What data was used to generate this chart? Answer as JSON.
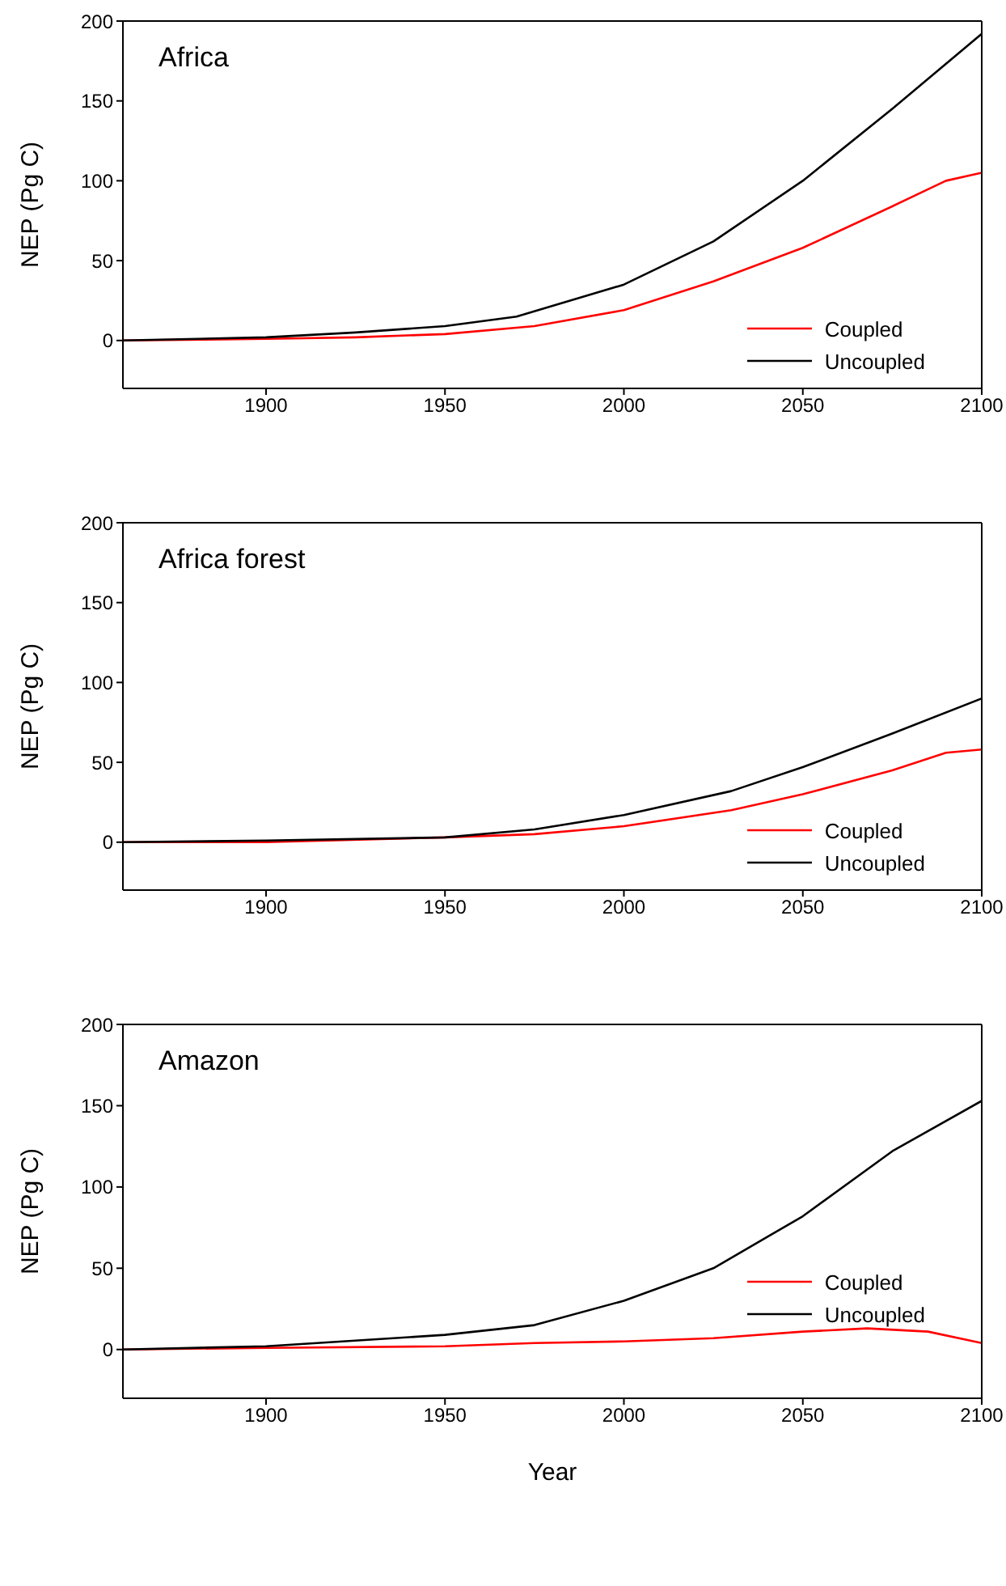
{
  "chart_data": [
    {
      "type": "line",
      "title": "Africa",
      "ylabel": "NEP (Pg C)",
      "xlim": [
        1860,
        2100
      ],
      "xticks": [
        1900,
        1950,
        2000,
        2050,
        2100
      ],
      "ylim": [
        -30,
        200
      ],
      "yticks": [
        0,
        50,
        100,
        150,
        200
      ],
      "grid": false,
      "legend": "bottom right",
      "marker": "none",
      "line_style": "solid",
      "series": [
        {
          "name": "Coupled",
          "color": "#ff0000",
          "x": [
            1860,
            1900,
            1925,
            1950,
            1975,
            2000,
            2025,
            2050,
            2075,
            2090,
            2100
          ],
          "values": [
            0,
            1,
            2,
            4,
            9,
            19,
            37,
            58,
            84,
            100,
            105
          ]
        },
        {
          "name": "Uncoupled",
          "color": "#000000",
          "x": [
            1860,
            1900,
            1925,
            1950,
            1970,
            2000,
            2025,
            2050,
            2075,
            2100
          ],
          "values": [
            0,
            2,
            5,
            9,
            15,
            35,
            62,
            100,
            145,
            192
          ]
        }
      ]
    },
    {
      "type": "line",
      "title": "Africa forest",
      "ylabel": "NEP (Pg C)",
      "xlim": [
        1860,
        2100
      ],
      "xticks": [
        1900,
        1950,
        2000,
        2050,
        2100
      ],
      "ylim": [
        -30,
        200
      ],
      "yticks": [
        0,
        50,
        100,
        150,
        200
      ],
      "grid": false,
      "legend": "bottom right",
      "marker": "none",
      "line_style": "solid",
      "series": [
        {
          "name": "Coupled",
          "color": "#ff0000",
          "x": [
            1860,
            1900,
            1950,
            1975,
            2000,
            2030,
            2050,
            2075,
            2090,
            2100
          ],
          "values": [
            0,
            0,
            3,
            5,
            10,
            20,
            30,
            45,
            56,
            58
          ]
        },
        {
          "name": "Uncoupled",
          "color": "#000000",
          "x": [
            1860,
            1900,
            1950,
            1975,
            2000,
            2030,
            2050,
            2075,
            2100
          ],
          "values": [
            0,
            1,
            3,
            8,
            17,
            32,
            47,
            68,
            90
          ]
        }
      ]
    },
    {
      "type": "line",
      "title": "Amazon",
      "ylabel": "NEP (Pg C)",
      "xlabel": "Year",
      "xlim": [
        1860,
        2100
      ],
      "xticks": [
        1900,
        1950,
        2000,
        2050,
        2100
      ],
      "ylim": [
        -30,
        200
      ],
      "yticks": [
        0,
        50,
        100,
        150,
        200
      ],
      "grid": false,
      "legend": "right",
      "marker": "none",
      "line_style": "solid",
      "series": [
        {
          "name": "Coupled",
          "color": "#ff0000",
          "x": [
            1860,
            1900,
            1950,
            1975,
            2000,
            2025,
            2050,
            2068,
            2085,
            2100
          ],
          "values": [
            0,
            1,
            2,
            4,
            5,
            7,
            11,
            13,
            11,
            4
          ]
        },
        {
          "name": "Uncoupled",
          "color": "#000000",
          "x": [
            1860,
            1900,
            1950,
            1975,
            2000,
            2025,
            2050,
            2075,
            2100
          ],
          "values": [
            0,
            2,
            9,
            15,
            30,
            50,
            82,
            122,
            153
          ]
        }
      ]
    }
  ]
}
